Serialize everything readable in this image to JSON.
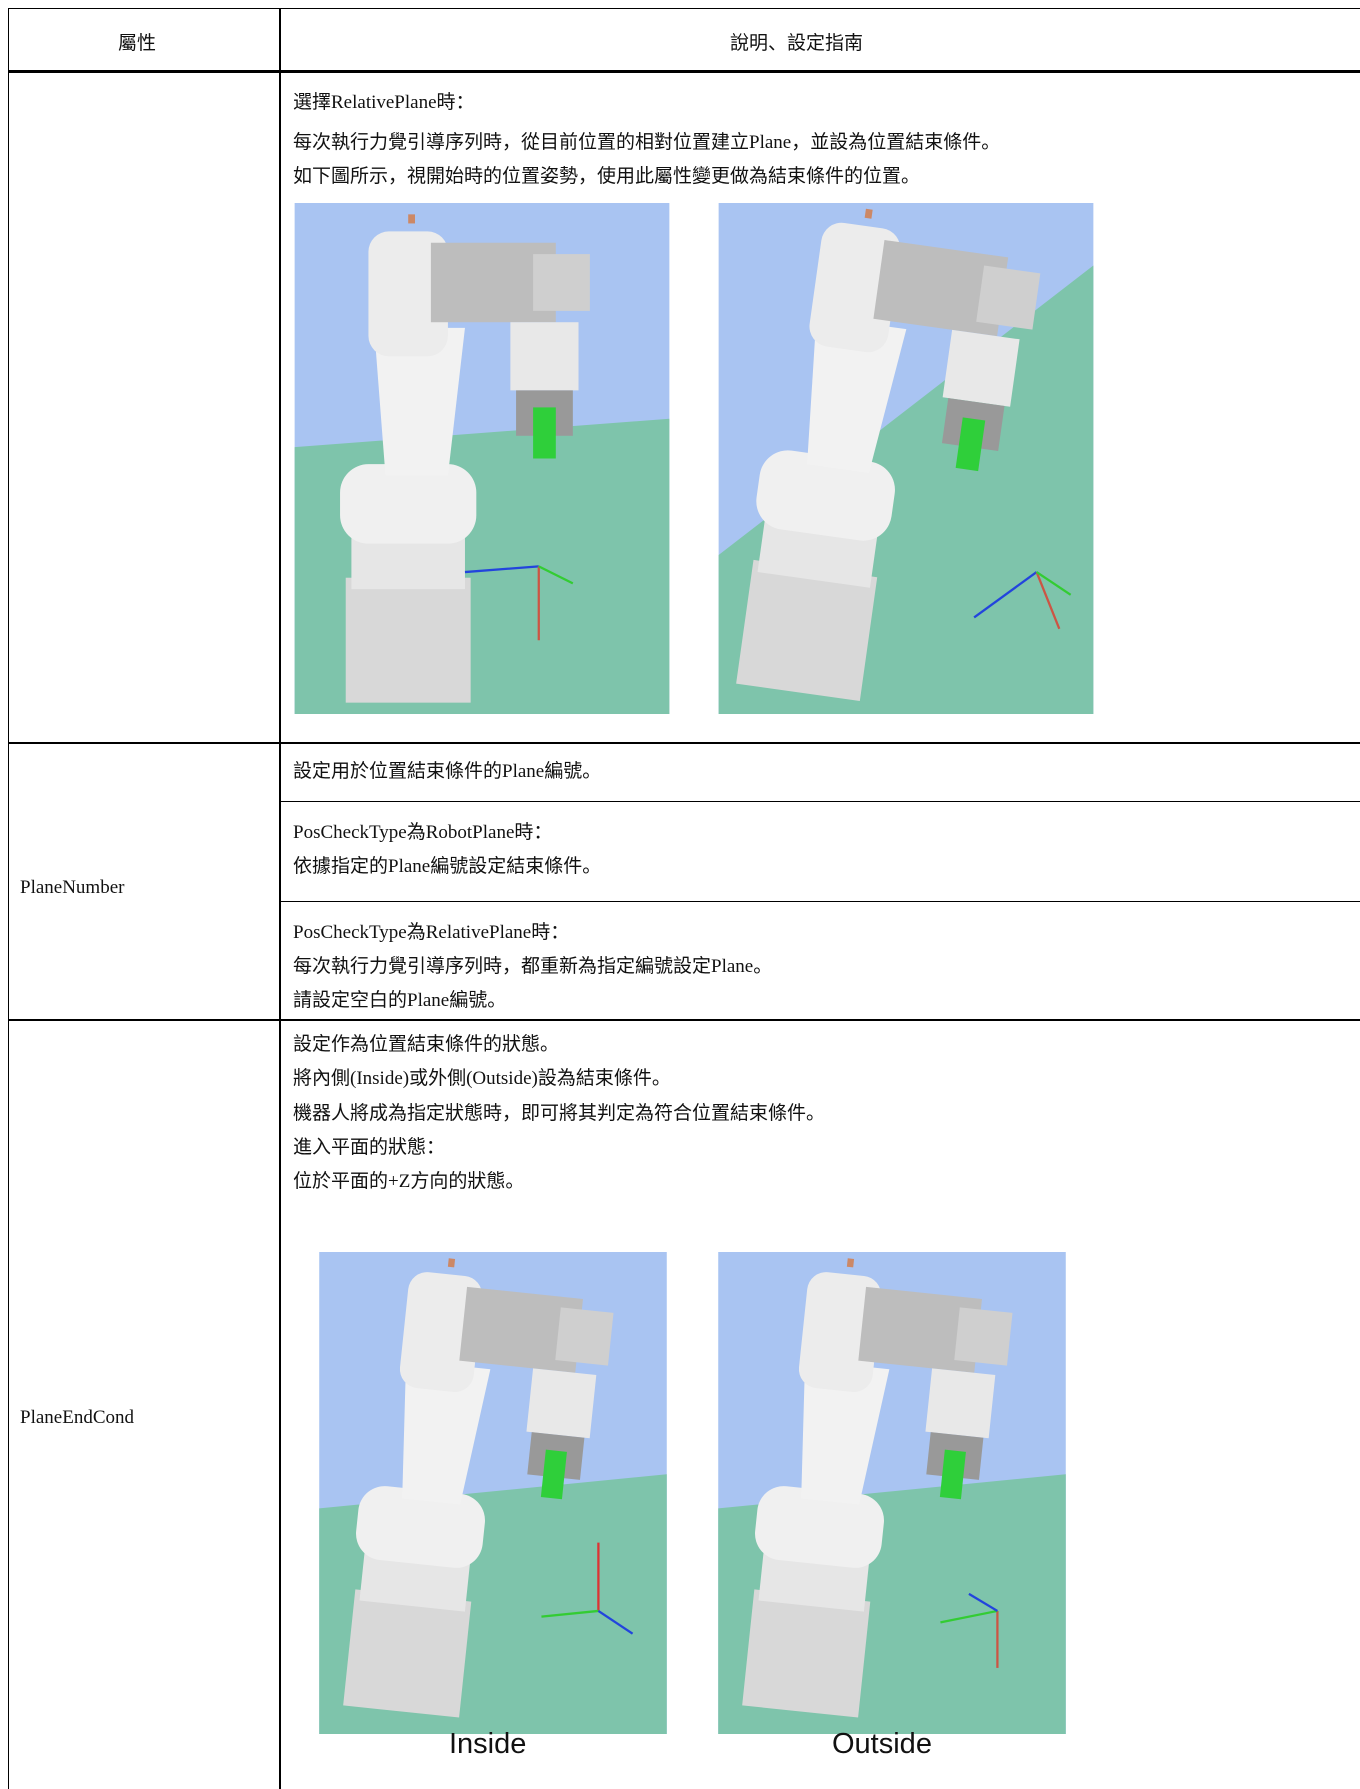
{
  "header": {
    "col1": "屬性",
    "col2": "說明、設定指南"
  },
  "rows": [
    {
      "property": null,
      "descriptions": [
        {
          "lines": [
            "選擇RelativePlane時：",
            "每次執行力覺引導序列時，從目前位置的相對位置建立Plane，並設為位置結束條件。",
            "如下圖所示，視開始時的位置姿勢，使用此屬性變更做為結束條件的位置。"
          ]
        }
      ]
    },
    {
      "property": "PlaneNumber",
      "descriptions": [
        {
          "lines": [
            "設定用於位置結束條件的Plane編號。"
          ]
        },
        {
          "lines": [
            "PosCheckType為RobotPlane時：",
            "依據指定的Plane編號設定結束條件。"
          ]
        },
        {
          "lines": [
            "PosCheckType為RelativePlane時：",
            "每次執行力覺引導序列時，都重新為指定編號設定Plane。",
            "請設定空白的Plane編號。"
          ]
        }
      ]
    },
    {
      "property": "PlaneEndCond",
      "descriptions": [
        {
          "lines": [
            "設定作為位置結束條件的狀態。",
            "將內側(Inside)或外側(Outside)設為結束條件。",
            "機器人將成為指定狀態時，即可將其判定為符合位置結束條件。",
            "進入平面的狀態：",
            "位於平面的+Z方向的狀態。"
          ]
        }
      ],
      "image_captions": [
        "Inside",
        "Outside"
      ]
    }
  ]
}
